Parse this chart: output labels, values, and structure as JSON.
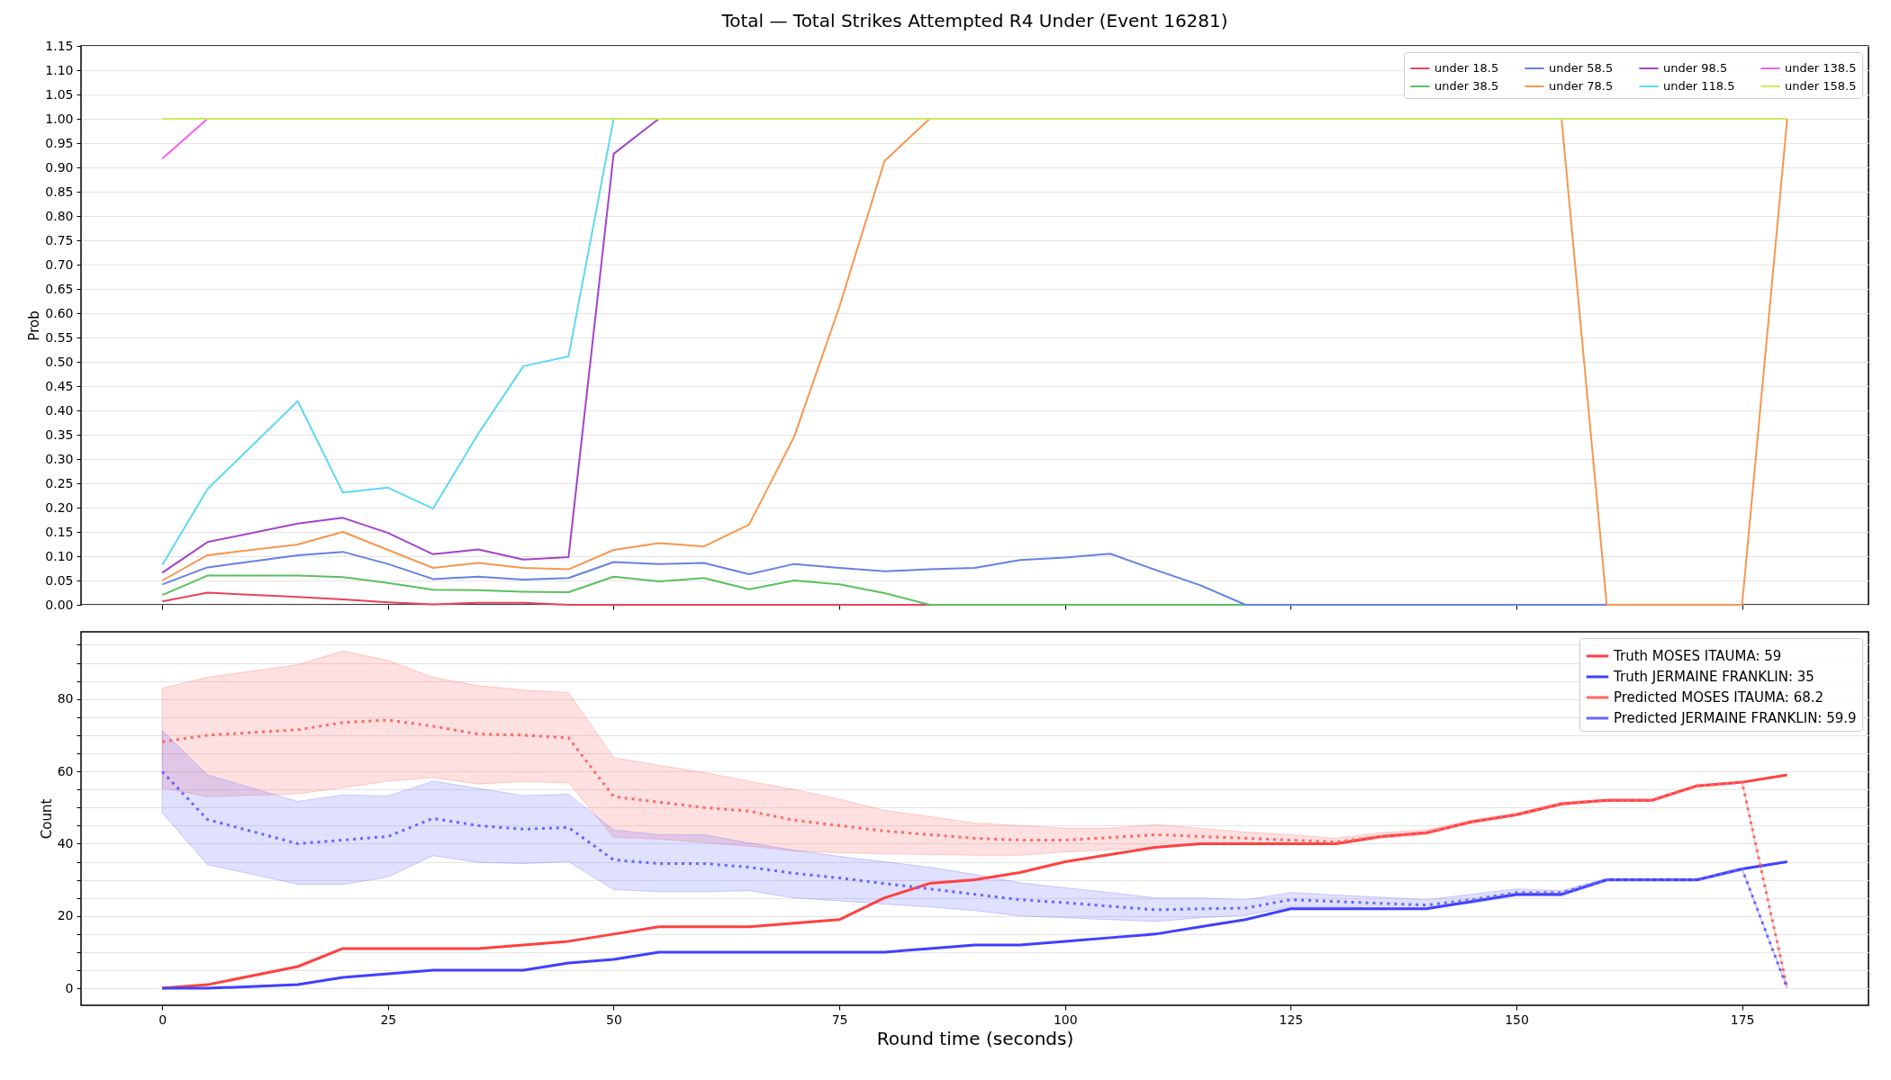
{
  "chart_data": [
    {
      "type": "line",
      "title": "Total — Total Strikes Attempted R4 Under (Event 16281)",
      "ylabel": "Prob",
      "x": [
        0,
        5,
        15,
        20,
        25,
        30,
        35,
        40,
        45,
        50,
        55,
        60,
        65,
        70,
        75,
        80,
        85,
        90,
        95,
        100,
        105,
        110,
        115,
        120,
        125,
        130,
        135,
        140,
        145,
        150,
        155,
        160,
        165,
        170,
        175,
        180
      ],
      "series": [
        {
          "name": "under 18.5",
          "color": "#e6445f",
          "values": [
            0.007,
            0.025,
            0.016,
            0.011,
            0.005,
            0.001,
            0.004,
            0.004,
            0,
            0,
            0,
            0,
            0,
            0,
            0,
            0,
            0,
            null,
            null,
            null,
            null,
            null,
            null,
            null,
            null,
            null,
            null,
            null,
            null,
            null,
            null,
            null,
            null,
            null,
            null,
            null
          ]
        },
        {
          "name": "under 38.5",
          "color": "#5cbf5f",
          "values": [
            0.02,
            0.06,
            0.06,
            0.057,
            0.045,
            0.031,
            0.03,
            0.027,
            0.026,
            0.058,
            0.048,
            0.055,
            0.032,
            0.05,
            0.042,
            0.024,
            0,
            0,
            0,
            0,
            0,
            0,
            0,
            0,
            0,
            null,
            null,
            null,
            null,
            null,
            null,
            null,
            null,
            null,
            null,
            null
          ]
        },
        {
          "name": "under 58.5",
          "color": "#6680e6",
          "values": [
            0.042,
            0.077,
            0.102,
            0.109,
            0.084,
            0.053,
            0.058,
            0.052,
            0.055,
            0.088,
            0.084,
            0.086,
            0.063,
            0.084,
            0.076,
            0.069,
            0.073,
            0.076,
            0.092,
            0.097,
            0.105,
            0.072,
            0.04,
            0,
            0,
            0,
            0,
            0,
            0,
            0,
            0,
            0,
            0,
            null,
            null,
            null
          ]
        },
        {
          "name": "under 78.5",
          "color": "#f79650",
          "values": [
            0.05,
            0.102,
            0.124,
            0.15,
            0.113,
            0.076,
            0.086,
            0.076,
            0.073,
            0.113,
            0.127,
            0.12,
            0.165,
            0.346,
            0.613,
            0.913,
            1.0,
            null,
            null,
            null,
            null,
            null,
            null,
            null,
            null,
            null,
            null,
            null,
            null,
            null,
            1.0,
            0,
            0,
            0,
            0,
            1.0
          ]
        },
        {
          "name": "under 98.5",
          "color": "#a244c8",
          "values": [
            0.066,
            0.129,
            0.167,
            0.179,
            0.148,
            0.104,
            0.114,
            0.093,
            0.098,
            0.928,
            1.0,
            null,
            null,
            null,
            null,
            null,
            null,
            null,
            null,
            null,
            null,
            null,
            null,
            null,
            null,
            null,
            null,
            null,
            null,
            null,
            null,
            null,
            null,
            null,
            null,
            null
          ]
        },
        {
          "name": "under 118.5",
          "color": "#5fd8f5",
          "values": [
            0.082,
            0.238,
            0.419,
            0.231,
            0.241,
            0.198,
            0.352,
            0.491,
            0.511,
            1.0,
            null,
            null,
            null,
            null,
            null,
            null,
            null,
            null,
            null,
            null,
            null,
            null,
            null,
            null,
            null,
            null,
            null,
            null,
            null,
            null,
            null,
            null,
            null,
            null,
            null,
            null
          ]
        },
        {
          "name": "under 138.5",
          "color": "#f55ff0",
          "values": [
            0.918,
            1.0,
            null,
            null,
            null,
            null,
            null,
            null,
            null,
            null,
            null,
            null,
            null,
            null,
            null,
            null,
            null,
            null,
            null,
            null,
            null,
            null,
            null,
            null,
            null,
            null,
            null,
            null,
            null,
            null,
            null,
            null,
            null,
            null,
            null,
            null
          ]
        },
        {
          "name": "under 158.5",
          "color": "#c8ec5a",
          "values": [
            1.0,
            1.0,
            1.0,
            1.0,
            1.0,
            1.0,
            1.0,
            1.0,
            1.0,
            1.0,
            1.0,
            1.0,
            1.0,
            1.0,
            1.0,
            1.0,
            1.0,
            1.0,
            1.0,
            1.0,
            1.0,
            1.0,
            1.0,
            1.0,
            1.0,
            1.0,
            1.0,
            1.0,
            1.0,
            1.0,
            1.0,
            1.0,
            1.0,
            1.0,
            1.0,
            1.0
          ]
        }
      ],
      "xlim": [
        -9,
        189
      ],
      "xticks": [
        0,
        25,
        50,
        75,
        100,
        125,
        150,
        175
      ],
      "ylim": [
        0,
        1.15
      ],
      "yticks": [
        {
          "value": 0,
          "label": "0.00"
        },
        {
          "value": 0.05,
          "label": "0.05"
        },
        {
          "value": 0.1,
          "label": "0.10"
        },
        {
          "value": 0.15,
          "label": "0.15"
        },
        {
          "value": 0.2,
          "label": "0.20"
        },
        {
          "value": 0.25,
          "label": "0.25"
        },
        {
          "value": 0.3,
          "label": "0.30"
        },
        {
          "value": 0.35,
          "label": "0.35"
        },
        {
          "value": 0.4,
          "label": "0.40"
        },
        {
          "value": 0.45,
          "label": "0.45"
        },
        {
          "value": 0.5,
          "label": "0.50"
        },
        {
          "value": 0.55,
          "label": "0.55"
        },
        {
          "value": 0.6,
          "label": "0.60"
        },
        {
          "value": 0.65,
          "label": "0.65"
        },
        {
          "value": 0.7,
          "label": "0.70"
        },
        {
          "value": 0.75,
          "label": "0.75"
        },
        {
          "value": 0.8,
          "label": "0.80"
        },
        {
          "value": 0.85,
          "label": "0.85"
        },
        {
          "value": 0.9,
          "label": "0.90"
        },
        {
          "value": 0.95,
          "label": "0.95"
        },
        {
          "value": 1.0,
          "label": "1.00"
        },
        {
          "value": 1.05,
          "label": "1.05"
        },
        {
          "value": 1.1,
          "label": "1.10"
        },
        {
          "value": 1.15,
          "label": "1.15"
        }
      ],
      "tick_labels": "y",
      "grid": "y",
      "legend": "top right"
    },
    {
      "type": "line",
      "xlabel": "Round time (seconds)",
      "ylabel": "Count",
      "x": [
        0,
        5,
        15,
        20,
        25,
        30,
        35,
        40,
        45,
        50,
        55,
        60,
        65,
        70,
        75,
        80,
        85,
        90,
        95,
        100,
        105,
        110,
        115,
        120,
        125,
        130,
        135,
        140,
        145,
        150,
        155,
        160,
        165,
        170,
        175,
        180
      ],
      "series": [
        {
          "name": "Truth MOSES ITAUMA: 59",
          "color": "#ff4040",
          "line_style": "solid",
          "values": [
            0,
            1,
            6,
            11,
            11,
            11,
            11,
            12,
            13,
            15,
            17,
            17,
            17,
            18,
            19,
            25,
            29,
            30,
            32,
            35,
            37,
            39,
            40,
            40,
            40,
            40,
            42,
            43,
            46,
            48,
            51,
            52,
            52,
            56,
            57,
            59
          ]
        },
        {
          "name": "Truth JERMAINE FRANKLIN: 35",
          "color": "#4040ff",
          "line_style": "solid",
          "values": [
            0,
            0,
            1,
            3,
            4,
            5,
            5,
            5,
            7,
            8,
            10,
            10,
            10,
            10,
            10,
            10,
            11,
            12,
            12,
            13,
            14,
            15,
            17,
            19,
            22,
            22,
            22,
            22,
            24,
            26,
            26,
            30,
            30,
            30,
            33,
            35
          ]
        },
        {
          "name": "Predicted MOSES ITAUMA: 68.2",
          "color": "#ff6666",
          "line_style": "dotted",
          "values": [
            68.2,
            70,
            71.5,
            73.5,
            74.2,
            72.5,
            70.3,
            70,
            69.3,
            53,
            51.5,
            50,
            49,
            46.5,
            45,
            43.5,
            42.5,
            41.5,
            41,
            41,
            41.7,
            42.5,
            42,
            41.5,
            41,
            40.5,
            42,
            43,
            46,
            48,
            51,
            52,
            52,
            56,
            57,
            0
          ],
          "lower": [
            55.5,
            53,
            53.8,
            55.5,
            57.3,
            58.3,
            56.5,
            57.2,
            56.8,
            41.8,
            41.3,
            40.3,
            39.3,
            38,
            37.5,
            37.2,
            37,
            36.8,
            36.8,
            37.7,
            38.3,
            39,
            39.8,
            40.2,
            40,
            39.7,
            41.5,
            42.5,
            45.7,
            47.7,
            50.7,
            51.7,
            51.7,
            55.7,
            56.7,
            0
          ],
          "upper": [
            83,
            86,
            89.5,
            93.3,
            90.7,
            86,
            83.7,
            82.5,
            81.8,
            63.8,
            61.7,
            59.7,
            57.3,
            55,
            52.3,
            49.2,
            47.5,
            45.7,
            45,
            44.3,
            44.3,
            45.3,
            44.3,
            43.2,
            42.5,
            41.5,
            43,
            43.8,
            46.5,
            48.5,
            51.5,
            52.3,
            52.3,
            56.3,
            57.3,
            0
          ]
        },
        {
          "name": "Predicted JERMAINE FRANKLIN: 59.9",
          "color": "#6666ff",
          "line_style": "dotted",
          "values": [
            59.9,
            46.7,
            40,
            41,
            42,
            47,
            45,
            44,
            44.5,
            35.5,
            34.5,
            34.5,
            33.5,
            31.8,
            30.5,
            29,
            27.5,
            26,
            24.5,
            23.7,
            22.7,
            21.7,
            22,
            22.2,
            24.5,
            24,
            23.5,
            23,
            24.5,
            26.5,
            26.5,
            30,
            30,
            30,
            33,
            0
          ],
          "lower": [
            48.5,
            34.2,
            28.8,
            28.7,
            30.8,
            36.7,
            34.8,
            34.5,
            35,
            27.3,
            26.7,
            26.7,
            27,
            25,
            24.2,
            23.3,
            22.5,
            21.5,
            20,
            19.5,
            19,
            18.5,
            19.5,
            20.2,
            22.5,
            22.5,
            22.2,
            22,
            23.5,
            25.5,
            25.5,
            29.6,
            29.6,
            29.6,
            32.6,
            0
          ],
          "upper": [
            71.3,
            59,
            51.7,
            53.5,
            53.2,
            57.3,
            55.3,
            53.3,
            53.7,
            43.8,
            42.5,
            42.5,
            40.2,
            38.2,
            36.5,
            35,
            33.5,
            31.5,
            29.2,
            27.8,
            26.5,
            25,
            25,
            24.5,
            26.5,
            25.8,
            25.2,
            24.5,
            26,
            27.5,
            27,
            30.4,
            30.4,
            30.4,
            33.4,
            0
          ]
        }
      ],
      "xlim": [
        -9,
        189
      ],
      "xticks": [
        0,
        25,
        50,
        75,
        100,
        125,
        150,
        175
      ],
      "ylim": [
        -4.7,
        98.6
      ],
      "yticks": [
        0,
        {
          "value": 5,
          "label": null
        },
        {
          "value": 10,
          "label": null
        },
        {
          "value": 15,
          "label": null
        },
        20,
        {
          "value": 25,
          "label": null
        },
        {
          "value": 30,
          "label": null
        },
        {
          "value": 35,
          "label": null
        },
        40,
        {
          "value": 45,
          "label": null
        },
        {
          "value": 50,
          "label": null
        },
        {
          "value": 55,
          "label": null
        },
        60,
        {
          "value": 65,
          "label": null
        },
        {
          "value": 70,
          "label": null
        },
        {
          "value": 75,
          "label": null
        },
        80,
        {
          "value": 85,
          "label": null
        },
        {
          "value": 90,
          "label": null
        },
        {
          "value": 95,
          "label": null
        }
      ],
      "grid": "y",
      "legend": "top right"
    }
  ]
}
